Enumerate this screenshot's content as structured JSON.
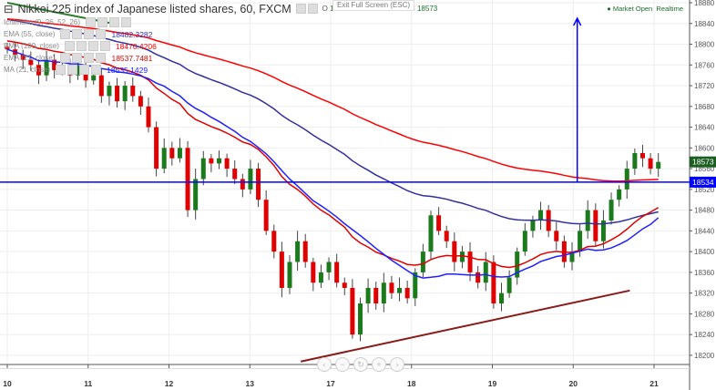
{
  "header": {
    "title": "Nikkei 225 index of Japanese listed shares, 60, FXCM",
    "open_label": "O",
    "open": "18573",
    "high_label": "H",
    "high": "18573",
    "low_label": "L",
    "low": "18568",
    "close_label": "C",
    "close": "18573",
    "status": "Market Open",
    "realtime": "Realtime",
    "exit_fullscreen": "Exit Full Screen (ESC)"
  },
  "indicators": [
    {
      "name": "Ichimoku (9, 26, 52, 26)",
      "value": "",
      "color": "#999999"
    },
    {
      "name": "EMA (55, close)",
      "value": "18482.3282",
      "color": "#3030c0"
    },
    {
      "name": "EMA (100, close)",
      "value": "18470.4206",
      "color": "#ff0000"
    },
    {
      "name": "EMA (21, close)",
      "value": "18537.7481",
      "color": "#e00000"
    },
    {
      "name": "MA (21, close)",
      "value": "18535.1429",
      "color": "#2020ff"
    }
  ],
  "nav": {
    "left": "‹",
    "minus": "−",
    "reset": "↻",
    "plus": "+",
    "right": "›"
  },
  "chart_data": {
    "type": "candlestick",
    "title": "Nikkei 225 index of Japanese listed shares, 60, FXCM",
    "x_ticks": [
      "10",
      "11",
      "12",
      "13",
      "17",
      "18",
      "19",
      "20",
      "21"
    ],
    "y_ticks": [
      18200,
      18240,
      18280,
      18320,
      18360,
      18400,
      18440,
      18480,
      18520,
      18560,
      18600,
      18640,
      18680,
      18720,
      18760,
      18800,
      18840,
      18880
    ],
    "ylim": [
      18180,
      18890
    ],
    "closes": [
      18790,
      18780,
      18770,
      18760,
      18740,
      18770,
      18750,
      18760,
      18740,
      18760,
      18730,
      18740,
      18700,
      18720,
      18690,
      18720,
      18700,
      18680,
      18640,
      18560,
      18600,
      18580,
      18600,
      18480,
      18540,
      18580,
      18570,
      18580,
      18560,
      18540,
      18520,
      18560,
      18500,
      18440,
      18400,
      18330,
      18380,
      18420,
      18380,
      18340,
      18360,
      18380,
      18340,
      18330,
      18240,
      18300,
      18330,
      18300,
      18340,
      18320,
      18330,
      18310,
      18360,
      18400,
      18470,
      18440,
      18420,
      18380,
      18400,
      18360,
      18340,
      18380,
      18300,
      18320,
      18350,
      18400,
      18440,
      18460,
      18480,
      18440,
      18420,
      18380,
      18400,
      18440,
      18480,
      18420,
      18460,
      18500,
      18520,
      18560,
      18590,
      18580,
      18560,
      18573
    ],
    "last_price": "18573",
    "horizontal_level": "18534",
    "last_price_color": "#1b5e20",
    "level_color": "#0000ff",
    "drawings": [
      {
        "type": "support-line",
        "from": [
          3.63,
          18188
        ],
        "to": [
          7.7,
          18325
        ],
        "color": "#8b1a1a"
      },
      {
        "type": "arrow-up",
        "x": 7.05,
        "from": 18534,
        "to": 18850,
        "color": "#0000ff"
      },
      {
        "type": "trend-line",
        "from": [
          0.0,
          18880
        ],
        "to": [
          1.3,
          18840
        ],
        "color": "#2e7d32"
      }
    ]
  }
}
